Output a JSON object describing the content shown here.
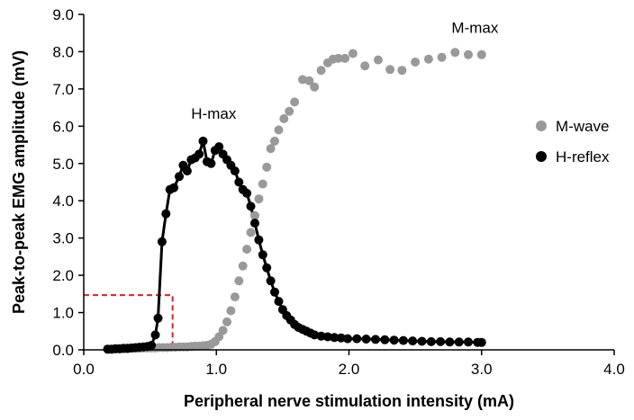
{
  "chart_data": {
    "type": "scatter",
    "title": "",
    "xlabel": "Peripheral nerve stimulation intensity (mA)",
    "ylabel": "Peak-to-peak EMG amplitude (mV)",
    "xlim": [
      0,
      4
    ],
    "ylim": [
      0,
      9
    ],
    "x_ticks": [
      "0.0",
      "1.0",
      "2.0",
      "3.0",
      "4.0"
    ],
    "y_ticks": [
      "0.0",
      "1.0",
      "2.0",
      "3.0",
      "4.0",
      "5.0",
      "6.0",
      "7.0",
      "8.0",
      "9.0"
    ],
    "grid": false,
    "legend": "right",
    "annotations": [
      {
        "text": "H-max",
        "x": 0.98,
        "y": 6.2
      },
      {
        "text": "M-max",
        "x": 2.95,
        "y": 8.5
      }
    ],
    "threshold_marker": {
      "x": 0.67,
      "y": 1.47,
      "color": "#e02020"
    },
    "series": [
      {
        "name": "M-wave",
        "color": "#999999",
        "line": false,
        "points": [
          [
            0.18,
            0.02
          ],
          [
            0.21,
            0.02
          ],
          [
            0.24,
            0.03
          ],
          [
            0.27,
            0.03
          ],
          [
            0.3,
            0.03
          ],
          [
            0.33,
            0.03
          ],
          [
            0.36,
            0.04
          ],
          [
            0.39,
            0.04
          ],
          [
            0.42,
            0.04
          ],
          [
            0.45,
            0.05
          ],
          [
            0.48,
            0.05
          ],
          [
            0.51,
            0.05
          ],
          [
            0.54,
            0.05
          ],
          [
            0.57,
            0.06
          ],
          [
            0.6,
            0.06
          ],
          [
            0.63,
            0.06
          ],
          [
            0.66,
            0.07
          ],
          [
            0.69,
            0.07
          ],
          [
            0.72,
            0.08
          ],
          [
            0.75,
            0.08
          ],
          [
            0.78,
            0.08
          ],
          [
            0.81,
            0.09
          ],
          [
            0.84,
            0.1
          ],
          [
            0.87,
            0.1
          ],
          [
            0.9,
            0.11
          ],
          [
            0.93,
            0.12
          ],
          [
            0.96,
            0.15
          ],
          [
            0.99,
            0.22
          ],
          [
            1.02,
            0.35
          ],
          [
            1.05,
            0.52
          ],
          [
            1.08,
            0.75
          ],
          [
            1.11,
            1.05
          ],
          [
            1.14,
            1.42
          ],
          [
            1.17,
            1.85
          ],
          [
            1.2,
            2.25
          ],
          [
            1.23,
            2.7
          ],
          [
            1.26,
            3.15
          ],
          [
            1.29,
            3.6
          ],
          [
            1.32,
            4.05
          ],
          [
            1.35,
            4.45
          ],
          [
            1.38,
            4.9
          ],
          [
            1.41,
            5.4
          ],
          [
            1.44,
            5.6
          ],
          [
            1.47,
            5.9
          ],
          [
            1.51,
            6.2
          ],
          [
            1.55,
            6.4
          ],
          [
            1.59,
            6.65
          ],
          [
            1.65,
            7.25
          ],
          [
            1.7,
            7.22
          ],
          [
            1.74,
            7.05
          ],
          [
            1.79,
            7.5
          ],
          [
            1.84,
            7.7
          ],
          [
            1.88,
            7.8
          ],
          [
            1.92,
            7.82
          ],
          [
            1.97,
            7.82
          ],
          [
            2.03,
            7.95
          ],
          [
            2.12,
            7.62
          ],
          [
            2.22,
            7.78
          ],
          [
            2.31,
            7.52
          ],
          [
            2.4,
            7.5
          ],
          [
            2.5,
            7.72
          ],
          [
            2.6,
            7.8
          ],
          [
            2.7,
            7.85
          ],
          [
            2.8,
            7.98
          ],
          [
            2.9,
            7.92
          ],
          [
            3.0,
            7.92
          ]
        ]
      },
      {
        "name": "H-reflex",
        "color": "#000000",
        "line": true,
        "points": [
          [
            0.18,
            0.02
          ],
          [
            0.21,
            0.02
          ],
          [
            0.24,
            0.03
          ],
          [
            0.27,
            0.03
          ],
          [
            0.3,
            0.04
          ],
          [
            0.33,
            0.04
          ],
          [
            0.36,
            0.05
          ],
          [
            0.39,
            0.06
          ],
          [
            0.42,
            0.07
          ],
          [
            0.45,
            0.08
          ],
          [
            0.48,
            0.09
          ],
          [
            0.51,
            0.12
          ],
          [
            0.54,
            0.4
          ],
          [
            0.56,
            0.85
          ],
          [
            0.59,
            2.9
          ],
          [
            0.62,
            3.65
          ],
          [
            0.65,
            4.3
          ],
          [
            0.68,
            4.35
          ],
          [
            0.72,
            4.65
          ],
          [
            0.75,
            4.95
          ],
          [
            0.78,
            4.8
          ],
          [
            0.81,
            5.1
          ],
          [
            0.84,
            5.15
          ],
          [
            0.87,
            5.25
          ],
          [
            0.9,
            5.6
          ],
          [
            0.93,
            5.05
          ],
          [
            0.96,
            5.0
          ],
          [
            0.99,
            5.35
          ],
          [
            1.02,
            5.45
          ],
          [
            1.05,
            5.25
          ],
          [
            1.08,
            5.1
          ],
          [
            1.11,
            4.95
          ],
          [
            1.14,
            4.8
          ],
          [
            1.17,
            4.5
          ],
          [
            1.2,
            4.3
          ],
          [
            1.23,
            4.2
          ],
          [
            1.26,
            3.85
          ],
          [
            1.29,
            3.4
          ],
          [
            1.32,
            2.95
          ],
          [
            1.35,
            2.55
          ],
          [
            1.38,
            2.2
          ],
          [
            1.41,
            1.85
          ],
          [
            1.44,
            1.55
          ],
          [
            1.47,
            1.3
          ],
          [
            1.5,
            1.08
          ],
          [
            1.53,
            0.92
          ],
          [
            1.56,
            0.8
          ],
          [
            1.59,
            0.68
          ],
          [
            1.62,
            0.6
          ],
          [
            1.65,
            0.55
          ],
          [
            1.68,
            0.5
          ],
          [
            1.71,
            0.45
          ],
          [
            1.74,
            0.4
          ],
          [
            1.79,
            0.37
          ],
          [
            1.84,
            0.35
          ],
          [
            1.89,
            0.33
          ],
          [
            1.94,
            0.32
          ],
          [
            1.99,
            0.3
          ],
          [
            2.06,
            0.3
          ],
          [
            2.13,
            0.29
          ],
          [
            2.2,
            0.28
          ],
          [
            2.27,
            0.27
          ],
          [
            2.34,
            0.26
          ],
          [
            2.41,
            0.25
          ],
          [
            2.48,
            0.24
          ],
          [
            2.55,
            0.23
          ],
          [
            2.62,
            0.22
          ],
          [
            2.69,
            0.22
          ],
          [
            2.76,
            0.21
          ],
          [
            2.83,
            0.21
          ],
          [
            2.9,
            0.21
          ],
          [
            2.97,
            0.2
          ],
          [
            3.0,
            0.2
          ]
        ]
      }
    ]
  }
}
